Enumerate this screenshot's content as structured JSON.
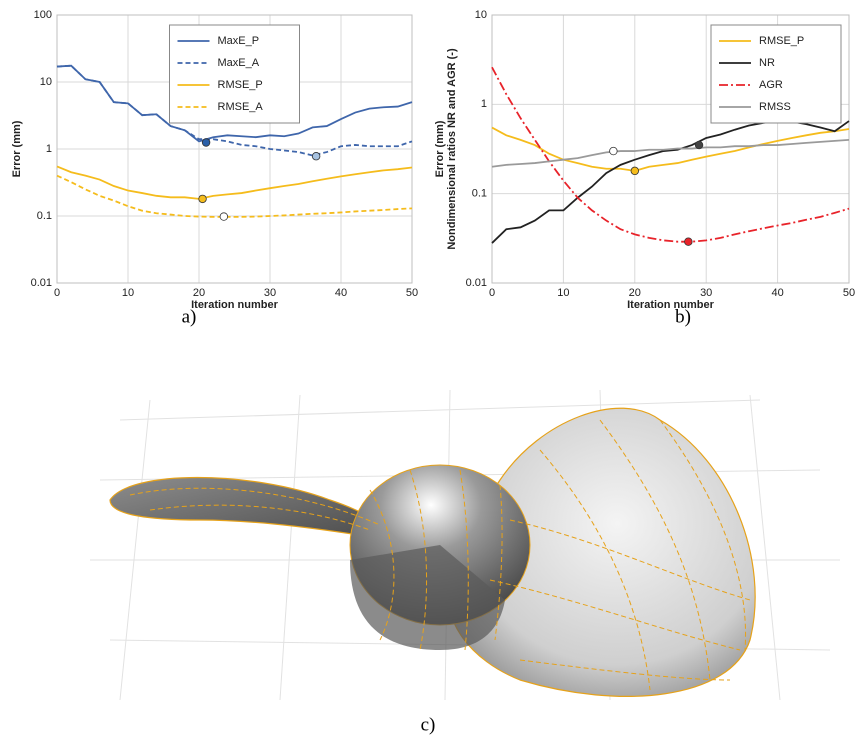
{
  "chart_data": [
    {
      "type": "line",
      "caption": "a)",
      "xlabel": "Iteration number",
      "ylabel": "Error (mm)",
      "yscale": "log",
      "grid": true,
      "legend": "upper center",
      "xlim": [
        0,
        50
      ],
      "xticks": [
        0,
        10,
        20,
        30,
        40,
        50
      ],
      "ylim": [
        0.01,
        100
      ],
      "yticks": [
        0.01,
        0.1,
        1,
        10,
        100
      ],
      "x": [
        0,
        2,
        4,
        6,
        8,
        10,
        12,
        14,
        16,
        18,
        20,
        22,
        24,
        26,
        28,
        30,
        32,
        34,
        36,
        38,
        40,
        42,
        44,
        46,
        48,
        50
      ],
      "series": [
        {
          "name": "MaxE_P",
          "color": "#3f66ab",
          "dash": "solid",
          "values": [
            17,
            17.5,
            11,
            10,
            5,
            4.8,
            3.2,
            3.3,
            2.2,
            1.9,
            1.3,
            1.5,
            1.6,
            1.55,
            1.5,
            1.6,
            1.55,
            1.7,
            2.1,
            2.2,
            2.8,
            3.5,
            4,
            4.2,
            4.3,
            5
          ],
          "min_point": {
            "x": 21,
            "y": 1.25,
            "fill": "#2a5fa8"
          }
        },
        {
          "name": "MaxE_A",
          "color": "#3f66ab",
          "dash": "dashed",
          "values": [
            17,
            17.5,
            11,
            10,
            5,
            4.8,
            3.2,
            3.3,
            2.2,
            1.9,
            1.4,
            1.4,
            1.3,
            1.15,
            1.1,
            1.0,
            0.95,
            0.9,
            0.8,
            0.9,
            1.1,
            1.15,
            1.1,
            1.1,
            1.1,
            1.3
          ],
          "min_point": {
            "x": 36.5,
            "y": 0.78,
            "fill": "#a7c2e0"
          }
        },
        {
          "name": "RMSE_P",
          "color": "#f5bc1c",
          "dash": "solid",
          "values": [
            0.55,
            0.45,
            0.4,
            0.35,
            0.28,
            0.24,
            0.22,
            0.2,
            0.19,
            0.19,
            0.18,
            0.2,
            0.21,
            0.22,
            0.24,
            0.26,
            0.28,
            0.3,
            0.33,
            0.36,
            0.39,
            0.42,
            0.45,
            0.48,
            0.5,
            0.53
          ],
          "min_point": {
            "x": 20.5,
            "y": 0.18,
            "fill": "#f5bc1c"
          }
        },
        {
          "name": "RMSE_A",
          "color": "#f5bc1c",
          "dash": "dashed",
          "values": [
            0.4,
            0.32,
            0.25,
            0.2,
            0.17,
            0.14,
            0.12,
            0.11,
            0.105,
            0.1,
            0.098,
            0.097,
            0.097,
            0.097,
            0.098,
            0.1,
            0.102,
            0.105,
            0.108,
            0.11,
            0.113,
            0.117,
            0.12,
            0.123,
            0.127,
            0.13
          ],
          "min_point": {
            "x": 23.5,
            "y": 0.098,
            "fill": "#ffffff"
          }
        }
      ]
    },
    {
      "type": "line",
      "caption": "b)",
      "xlabel": "Iteration number",
      "ylabel": [
        "Error (mm)",
        "Nondimensional ratios NR and AGR (-)"
      ],
      "yscale": "log",
      "grid": true,
      "legend": "upper right",
      "xlim": [
        0,
        50
      ],
      "xticks": [
        0,
        10,
        20,
        30,
        40,
        50
      ],
      "ylim": [
        0.01,
        10
      ],
      "yticks": [
        0.01,
        0.1,
        1,
        10
      ],
      "x": [
        0,
        2,
        4,
        6,
        8,
        10,
        12,
        14,
        16,
        18,
        20,
        22,
        24,
        26,
        28,
        30,
        32,
        34,
        36,
        38,
        40,
        42,
        44,
        46,
        48,
        50
      ],
      "series": [
        {
          "name": "RMSE_P",
          "color": "#f5bc1c",
          "dash": "solid",
          "values": [
            0.55,
            0.45,
            0.4,
            0.35,
            0.28,
            0.24,
            0.22,
            0.2,
            0.19,
            0.19,
            0.18,
            0.2,
            0.21,
            0.22,
            0.24,
            0.26,
            0.28,
            0.3,
            0.33,
            0.36,
            0.39,
            0.42,
            0.45,
            0.48,
            0.5,
            0.53
          ],
          "min_point": {
            "x": 20,
            "y": 0.18,
            "fill": "#f5bc1c"
          }
        },
        {
          "name": "NR",
          "color": "#222222",
          "dash": "solid",
          "values": [
            0.028,
            0.04,
            0.042,
            0.05,
            0.065,
            0.065,
            0.09,
            0.12,
            0.17,
            0.21,
            0.24,
            0.27,
            0.3,
            0.31,
            0.35,
            0.42,
            0.46,
            0.52,
            0.58,
            0.62,
            0.65,
            0.64,
            0.6,
            0.55,
            0.5,
            0.65
          ],
          "min_point": {
            "x": 29,
            "y": 0.35,
            "fill": "#444444"
          }
        },
        {
          "name": "AGR",
          "color": "#e8232a",
          "dash": "dashdot",
          "values": [
            2.6,
            1.3,
            0.7,
            0.4,
            0.23,
            0.14,
            0.09,
            0.065,
            0.05,
            0.04,
            0.035,
            0.032,
            0.03,
            0.029,
            0.029,
            0.03,
            0.032,
            0.035,
            0.038,
            0.041,
            0.044,
            0.047,
            0.051,
            0.055,
            0.061,
            0.068
          ],
          "min_point": {
            "x": 27.5,
            "y": 0.029,
            "fill": "#e8232a"
          }
        },
        {
          "name": "RMSS",
          "color": "#9a9a9a",
          "dash": "solid",
          "values": [
            0.2,
            0.21,
            0.215,
            0.22,
            0.23,
            0.24,
            0.25,
            0.27,
            0.29,
            0.3,
            0.3,
            0.31,
            0.31,
            0.32,
            0.32,
            0.33,
            0.33,
            0.34,
            0.34,
            0.35,
            0.35,
            0.36,
            0.37,
            0.38,
            0.39,
            0.4
          ],
          "min_point": {
            "x": 17,
            "y": 0.3,
            "fill": "#ffffff"
          }
        }
      ]
    }
  ],
  "figure_c": {
    "caption": "c)"
  }
}
